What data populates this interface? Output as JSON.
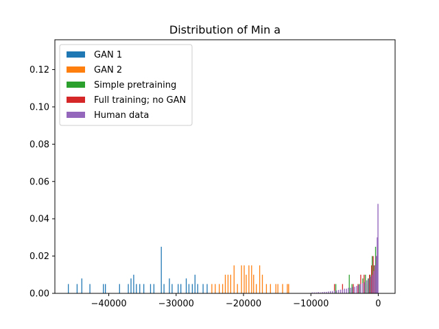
{
  "chart_data": {
    "type": "histogram",
    "title": "Distribution of Min a",
    "xlabel": "",
    "ylabel": "",
    "xlim": [
      -48000,
      2500
    ],
    "ylim": [
      0,
      0.136
    ],
    "grid": false,
    "legend_position": "top-left",
    "x_ticks": [
      {
        "value": -40000,
        "label": "−40000"
      },
      {
        "value": -30000,
        "label": "−30000"
      },
      {
        "value": -20000,
        "label": "−20000"
      },
      {
        "value": -10000,
        "label": "−10000"
      },
      {
        "value": 0,
        "label": "0"
      }
    ],
    "y_ticks": [
      {
        "value": 0,
        "label": "0.00"
      },
      {
        "value": 0.02,
        "label": "0.02"
      },
      {
        "value": 0.04,
        "label": "0.04"
      },
      {
        "value": 0.06,
        "label": "0.06"
      },
      {
        "value": 0.08,
        "label": "0.08"
      },
      {
        "value": 0.1,
        "label": "0.10"
      },
      {
        "value": 0.12,
        "label": "0.12"
      }
    ],
    "series": [
      {
        "name": "GAN 1",
        "color": "#1f77b4",
        "bins": [
          {
            "x": -46000,
            "y": 0.005
          },
          {
            "x": -44700,
            "y": 0.005
          },
          {
            "x": -44000,
            "y": 0.008
          },
          {
            "x": -42800,
            "y": 0.005
          },
          {
            "x": -40800,
            "y": 0.005
          },
          {
            "x": -40500,
            "y": 0.005
          },
          {
            "x": -38400,
            "y": 0.005
          },
          {
            "x": -37100,
            "y": 0.005
          },
          {
            "x": -36700,
            "y": 0.008
          },
          {
            "x": -36300,
            "y": 0.01
          },
          {
            "x": -35900,
            "y": 0.005
          },
          {
            "x": -35400,
            "y": 0.005
          },
          {
            "x": -34800,
            "y": 0.005
          },
          {
            "x": -33800,
            "y": 0.005
          },
          {
            "x": -33300,
            "y": 0.005
          },
          {
            "x": -32200,
            "y": 0.025
          },
          {
            "x": -31800,
            "y": 0.005
          },
          {
            "x": -31000,
            "y": 0.008
          },
          {
            "x": -30600,
            "y": 0.005
          },
          {
            "x": -29700,
            "y": 0.005
          },
          {
            "x": -29300,
            "y": 0.005
          },
          {
            "x": -28500,
            "y": 0.008
          },
          {
            "x": -28100,
            "y": 0.005
          },
          {
            "x": -27600,
            "y": 0.005
          },
          {
            "x": -27200,
            "y": 0.01
          },
          {
            "x": -26800,
            "y": 0.005
          },
          {
            "x": -26000,
            "y": 0.005
          },
          {
            "x": -25400,
            "y": 0.005
          }
        ]
      },
      {
        "name": "GAN 2",
        "color": "#ff7f0e",
        "bins": [
          {
            "x": -24700,
            "y": 0.005
          },
          {
            "x": -24200,
            "y": 0.005
          },
          {
            "x": -23600,
            "y": 0.005
          },
          {
            "x": -23100,
            "y": 0.005
          },
          {
            "x": -22700,
            "y": 0.01
          },
          {
            "x": -22300,
            "y": 0.01
          },
          {
            "x": -21900,
            "y": 0.01
          },
          {
            "x": -21400,
            "y": 0.015
          },
          {
            "x": -20900,
            "y": 0.005
          },
          {
            "x": -20300,
            "y": 0.015
          },
          {
            "x": -19900,
            "y": 0.015
          },
          {
            "x": -19600,
            "y": 0.01
          },
          {
            "x": -19200,
            "y": 0.015
          },
          {
            "x": -18800,
            "y": 0.015
          },
          {
            "x": -18500,
            "y": 0.01
          },
          {
            "x": -18100,
            "y": 0.005
          },
          {
            "x": -17600,
            "y": 0.015
          },
          {
            "x": -17200,
            "y": 0.01
          },
          {
            "x": -16600,
            "y": 0.005
          },
          {
            "x": -16000,
            "y": 0.005
          },
          {
            "x": -15200,
            "y": 0.005
          },
          {
            "x": -14900,
            "y": 0.005
          },
          {
            "x": -14200,
            "y": 0.005
          },
          {
            "x": -13500,
            "y": 0.005
          },
          {
            "x": -13300,
            "y": 0.005
          }
        ]
      },
      {
        "name": "Simple pretraining",
        "color": "#2ca02c",
        "bins": [
          {
            "x": -6300,
            "y": 0.005
          },
          {
            "x": -4300,
            "y": 0.01
          },
          {
            "x": -3900,
            "y": 0.005
          },
          {
            "x": -2800,
            "y": 0.005
          },
          {
            "x": -2300,
            "y": 0.008
          },
          {
            "x": -1900,
            "y": 0.01
          },
          {
            "x": -1500,
            "y": 0.008
          },
          {
            "x": -1200,
            "y": 0.01
          },
          {
            "x": -900,
            "y": 0.02
          },
          {
            "x": -650,
            "y": 0.015
          },
          {
            "x": -400,
            "y": 0.025
          },
          {
            "x": -200,
            "y": 0.02
          }
        ]
      },
      {
        "name": "Full training; no GAN",
        "color": "#d62728",
        "bins": [
          {
            "x": -6500,
            "y": 0.005
          },
          {
            "x": -5300,
            "y": 0.005
          },
          {
            "x": -3700,
            "y": 0.005
          },
          {
            "x": -3000,
            "y": 0.005
          },
          {
            "x": -2600,
            "y": 0.01
          },
          {
            "x": -2100,
            "y": 0.01
          },
          {
            "x": -1700,
            "y": 0.005
          },
          {
            "x": -1300,
            "y": 0.01
          },
          {
            "x": -1000,
            "y": 0.015
          },
          {
            "x": -750,
            "y": 0.02
          },
          {
            "x": -500,
            "y": 0.015
          },
          {
            "x": -300,
            "y": 0.02
          },
          {
            "x": -100,
            "y": 0.03
          }
        ]
      },
      {
        "name": "Human data",
        "color": "#9467bd",
        "bins": [
          {
            "x": -9800,
            "y": 0.0005
          },
          {
            "x": -9500,
            "y": 0.0005
          },
          {
            "x": -9200,
            "y": 0.0005
          },
          {
            "x": -8900,
            "y": 0.0007
          },
          {
            "x": -8600,
            "y": 0.0005
          },
          {
            "x": -8300,
            "y": 0.0007
          },
          {
            "x": -8000,
            "y": 0.0008
          },
          {
            "x": -7700,
            "y": 0.0008
          },
          {
            "x": -7400,
            "y": 0.001
          },
          {
            "x": -7100,
            "y": 0.0012
          },
          {
            "x": -6800,
            "y": 0.0012
          },
          {
            "x": -6500,
            "y": 0.0015
          },
          {
            "x": -6200,
            "y": 0.0015
          },
          {
            "x": -5900,
            "y": 0.0018
          },
          {
            "x": -5600,
            "y": 0.002
          },
          {
            "x": -5300,
            "y": 0.002
          },
          {
            "x": -5000,
            "y": 0.0025
          },
          {
            "x": -4700,
            "y": 0.0025
          },
          {
            "x": -4400,
            "y": 0.003
          },
          {
            "x": -4100,
            "y": 0.003
          },
          {
            "x": -3800,
            "y": 0.0035
          },
          {
            "x": -3500,
            "y": 0.0035
          },
          {
            "x": -3200,
            "y": 0.004
          },
          {
            "x": -2900,
            "y": 0.0045
          },
          {
            "x": -2600,
            "y": 0.005
          },
          {
            "x": -2300,
            "y": 0.0055
          },
          {
            "x": -2000,
            "y": 0.006
          },
          {
            "x": -1700,
            "y": 0.007
          },
          {
            "x": -1400,
            "y": 0.008
          },
          {
            "x": -1100,
            "y": 0.009
          },
          {
            "x": -850,
            "y": 0.01
          },
          {
            "x": -650,
            "y": 0.012
          },
          {
            "x": -450,
            "y": 0.015
          },
          {
            "x": -300,
            "y": 0.02
          },
          {
            "x": -150,
            "y": 0.03
          },
          {
            "x": -40,
            "y": 0.048
          }
        ]
      }
    ]
  }
}
